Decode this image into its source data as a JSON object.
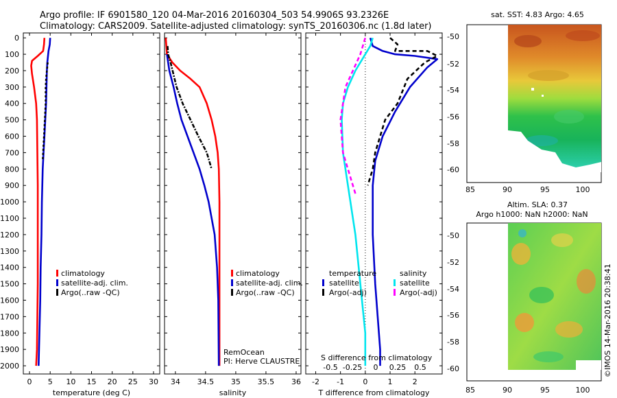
{
  "title": {
    "line1": "Argo profile: IF 6901580_120 04-Mar-2016 20160304_503 54.9906S 93.2326E",
    "line2": "Climatology: CARS2009. Satellite-adjusted climatology: synTS_20160306.nc (1.8d later)"
  },
  "colors": {
    "climatology": "#ff0000",
    "satellite": "#0000cc",
    "argo": "#000000",
    "cyan": "#00e5ee",
    "magenta": "#ff00ff"
  },
  "chart_data": [
    {
      "type": "line",
      "name": "temperature-panel",
      "xlabel": "temperature (deg C)",
      "ylabel": "",
      "xlim": [
        -1.5,
        31.5
      ],
      "ylim": [
        2050,
        -30
      ],
      "xticks": [
        0,
        5,
        10,
        15,
        20,
        25,
        30
      ],
      "yticks": [
        0,
        100,
        200,
        300,
        400,
        500,
        600,
        700,
        800,
        900,
        1000,
        1100,
        1200,
        1300,
        1400,
        1500,
        1600,
        1700,
        1800,
        1900,
        2000
      ],
      "legend": [
        "climatology",
        "satellite-adj. clim.",
        "Argo(..raw -QC)"
      ],
      "series": [
        {
          "name": "climatology",
          "color": "climatology",
          "dash": "",
          "x": [
            3.6,
            3.5,
            3.3,
            2.0,
            0.6,
            0.4,
            0.6,
            1.1,
            1.6,
            1.8,
            1.9,
            2.0,
            2.0,
            2.0,
            1.9,
            1.8,
            1.6
          ],
          "y": [
            0,
            40,
            80,
            110,
            140,
            170,
            220,
            300,
            400,
            500,
            700,
            900,
            1200,
            1500,
            1700,
            1900,
            2000
          ]
        },
        {
          "name": "satellite-adj. clim.",
          "color": "satellite",
          "dash": "",
          "x": [
            5.0,
            4.9,
            4.6,
            4.3,
            4.2,
            4.1,
            4.0,
            3.8,
            3.6,
            3.4,
            3.2,
            3.0,
            2.9,
            2.7,
            2.6,
            2.4,
            2.2
          ],
          "y": [
            0,
            40,
            80,
            150,
            200,
            300,
            400,
            500,
            600,
            700,
            800,
            1000,
            1200,
            1400,
            1600,
            1800,
            2000
          ]
        },
        {
          "name": "Argo(..raw -QC)",
          "color": "argo",
          "dash": "3,3",
          "x": [
            4.4,
            4.2,
            4.0,
            3.9,
            3.9,
            3.7,
            3.5,
            3.3,
            3.2
          ],
          "y": [
            150,
            200,
            250,
            300,
            400,
            500,
            600,
            700,
            750
          ]
        }
      ]
    },
    {
      "type": "line",
      "name": "salinity-panel",
      "xlabel": "salinity",
      "ylabel": "",
      "xlim": [
        33.82,
        36.08
      ],
      "ylim": [
        2050,
        -30
      ],
      "xticks": [
        34,
        34.5,
        35,
        35.5,
        36
      ],
      "yticks": [],
      "legend": [
        "climatology",
        "satellite-adj. clim.",
        "Argo(..raw -QC)"
      ],
      "annotation": [
        "RemOcean",
        "PI: Herve CLAUSTRE"
      ],
      "series": [
        {
          "name": "climatology",
          "color": "climatology",
          "dash": "",
          "x": [
            33.84,
            33.86,
            33.95,
            34.08,
            34.25,
            34.4,
            34.52,
            34.6,
            34.66,
            34.7,
            34.72,
            34.73,
            34.73,
            34.73,
            34.73,
            34.73
          ],
          "y": [
            0,
            100,
            150,
            200,
            250,
            300,
            400,
            500,
            600,
            700,
            800,
            1000,
            1200,
            1500,
            1800,
            2000
          ]
        },
        {
          "name": "satellite-adj. clim.",
          "color": "satellite",
          "dash": "",
          "x": [
            33.86,
            33.9,
            33.97,
            34.03,
            34.1,
            34.2,
            34.3,
            34.4,
            34.48,
            34.55,
            34.6,
            34.65,
            34.69,
            34.71,
            34.72
          ],
          "y": [
            100,
            200,
            300,
            400,
            500,
            600,
            700,
            800,
            900,
            1000,
            1100,
            1200,
            1400,
            1600,
            2000
          ]
        },
        {
          "name": "Argo(..raw -QC)",
          "color": "argo",
          "dash": "6,2,2,2",
          "x": [
            33.87,
            33.88,
            33.92,
            34.02,
            34.12,
            34.25,
            34.38,
            34.52,
            34.6
          ],
          "y": [
            50,
            100,
            150,
            300,
            400,
            500,
            600,
            700,
            800
          ]
        }
      ]
    },
    {
      "type": "line",
      "name": "difference-panel",
      "xlabel": "T difference from climatology",
      "xlabel2": "S difference from climatology",
      "xlim": [
        -2.4,
        3.1
      ],
      "ylim": [
        2050,
        -30
      ],
      "xticks": [
        -2,
        -1,
        0,
        1,
        2
      ],
      "s_ticks_labels": [
        "-0.5",
        "-0.25",
        "0",
        "0.25",
        "0.5"
      ],
      "legend_temperature": [
        "temperature",
        "satellite",
        "Argo(-adj)"
      ],
      "legend_salinity": [
        "salinity",
        "satellite",
        "Argo(-adj)"
      ],
      "series": [
        {
          "name": "T satellite",
          "color": "satellite",
          "dash": "",
          "x": [
            0.2,
            0.3,
            0.7,
            1.2,
            2.0,
            2.9,
            2.5,
            1.8,
            1.2,
            0.7,
            0.4,
            0.3,
            0.3,
            0.4,
            0.5,
            0.6,
            0.6
          ],
          "y": [
            0,
            50,
            80,
            100,
            110,
            130,
            180,
            300,
            450,
            600,
            750,
            900,
            1200,
            1500,
            1700,
            1900,
            2000
          ]
        },
        {
          "name": "T Argo",
          "color": "argo",
          "dash": "6,4",
          "x": [
            1.0,
            1.3,
            1.2,
            2.5,
            2.9,
            2.4,
            1.7,
            1.3,
            0.8,
            0.4,
            0.3,
            0.1
          ],
          "y": [
            0,
            40,
            80,
            80,
            110,
            150,
            250,
            400,
            500,
            700,
            800,
            900
          ]
        },
        {
          "name": "S satellite",
          "color": "cyan",
          "dash": "",
          "x": [
            0.3,
            0.2,
            0.0,
            -0.4,
            -0.7,
            -0.9,
            -0.95,
            -0.9,
            -0.7,
            -0.4,
            -0.2,
            0.0,
            0.0
          ],
          "y": [
            0,
            50,
            100,
            200,
            300,
            400,
            500,
            700,
            900,
            1200,
            1500,
            1800,
            2000
          ]
        },
        {
          "name": "S Argo",
          "color": "magenta",
          "dash": "6,4",
          "x": [
            0.0,
            -0.2,
            -0.8,
            -1.0,
            -0.9,
            -0.6,
            -0.4
          ],
          "y": [
            0,
            100,
            300,
            500,
            700,
            850,
            950
          ]
        }
      ]
    },
    {
      "type": "heatmap",
      "name": "sst-map",
      "title": "sat. SST: 4.83 Argo: 4.65",
      "xticks": [
        "85",
        "90",
        "95",
        "100"
      ],
      "yticks": [
        "-50",
        "-52",
        "-54",
        "-56",
        "-58",
        "-60"
      ],
      "xlim": [
        84,
        102.3
      ],
      "ylim": [
        -60.5,
        -49
      ]
    },
    {
      "type": "heatmap",
      "name": "sla-map",
      "title": "Altim. SLA: 0.37",
      "subtitle": "Argo h1000: NaN h2000: NaN",
      "xticks": [
        "85",
        "90",
        "95",
        "100"
      ],
      "yticks": [
        "-50",
        "-52",
        "-54",
        "-56",
        "-58",
        "-60"
      ],
      "xlim": [
        84,
        102.3
      ],
      "ylim": [
        -60.5,
        -49
      ]
    }
  ],
  "stamp": "©IMOS 14-Mar-2016 20:38:41"
}
